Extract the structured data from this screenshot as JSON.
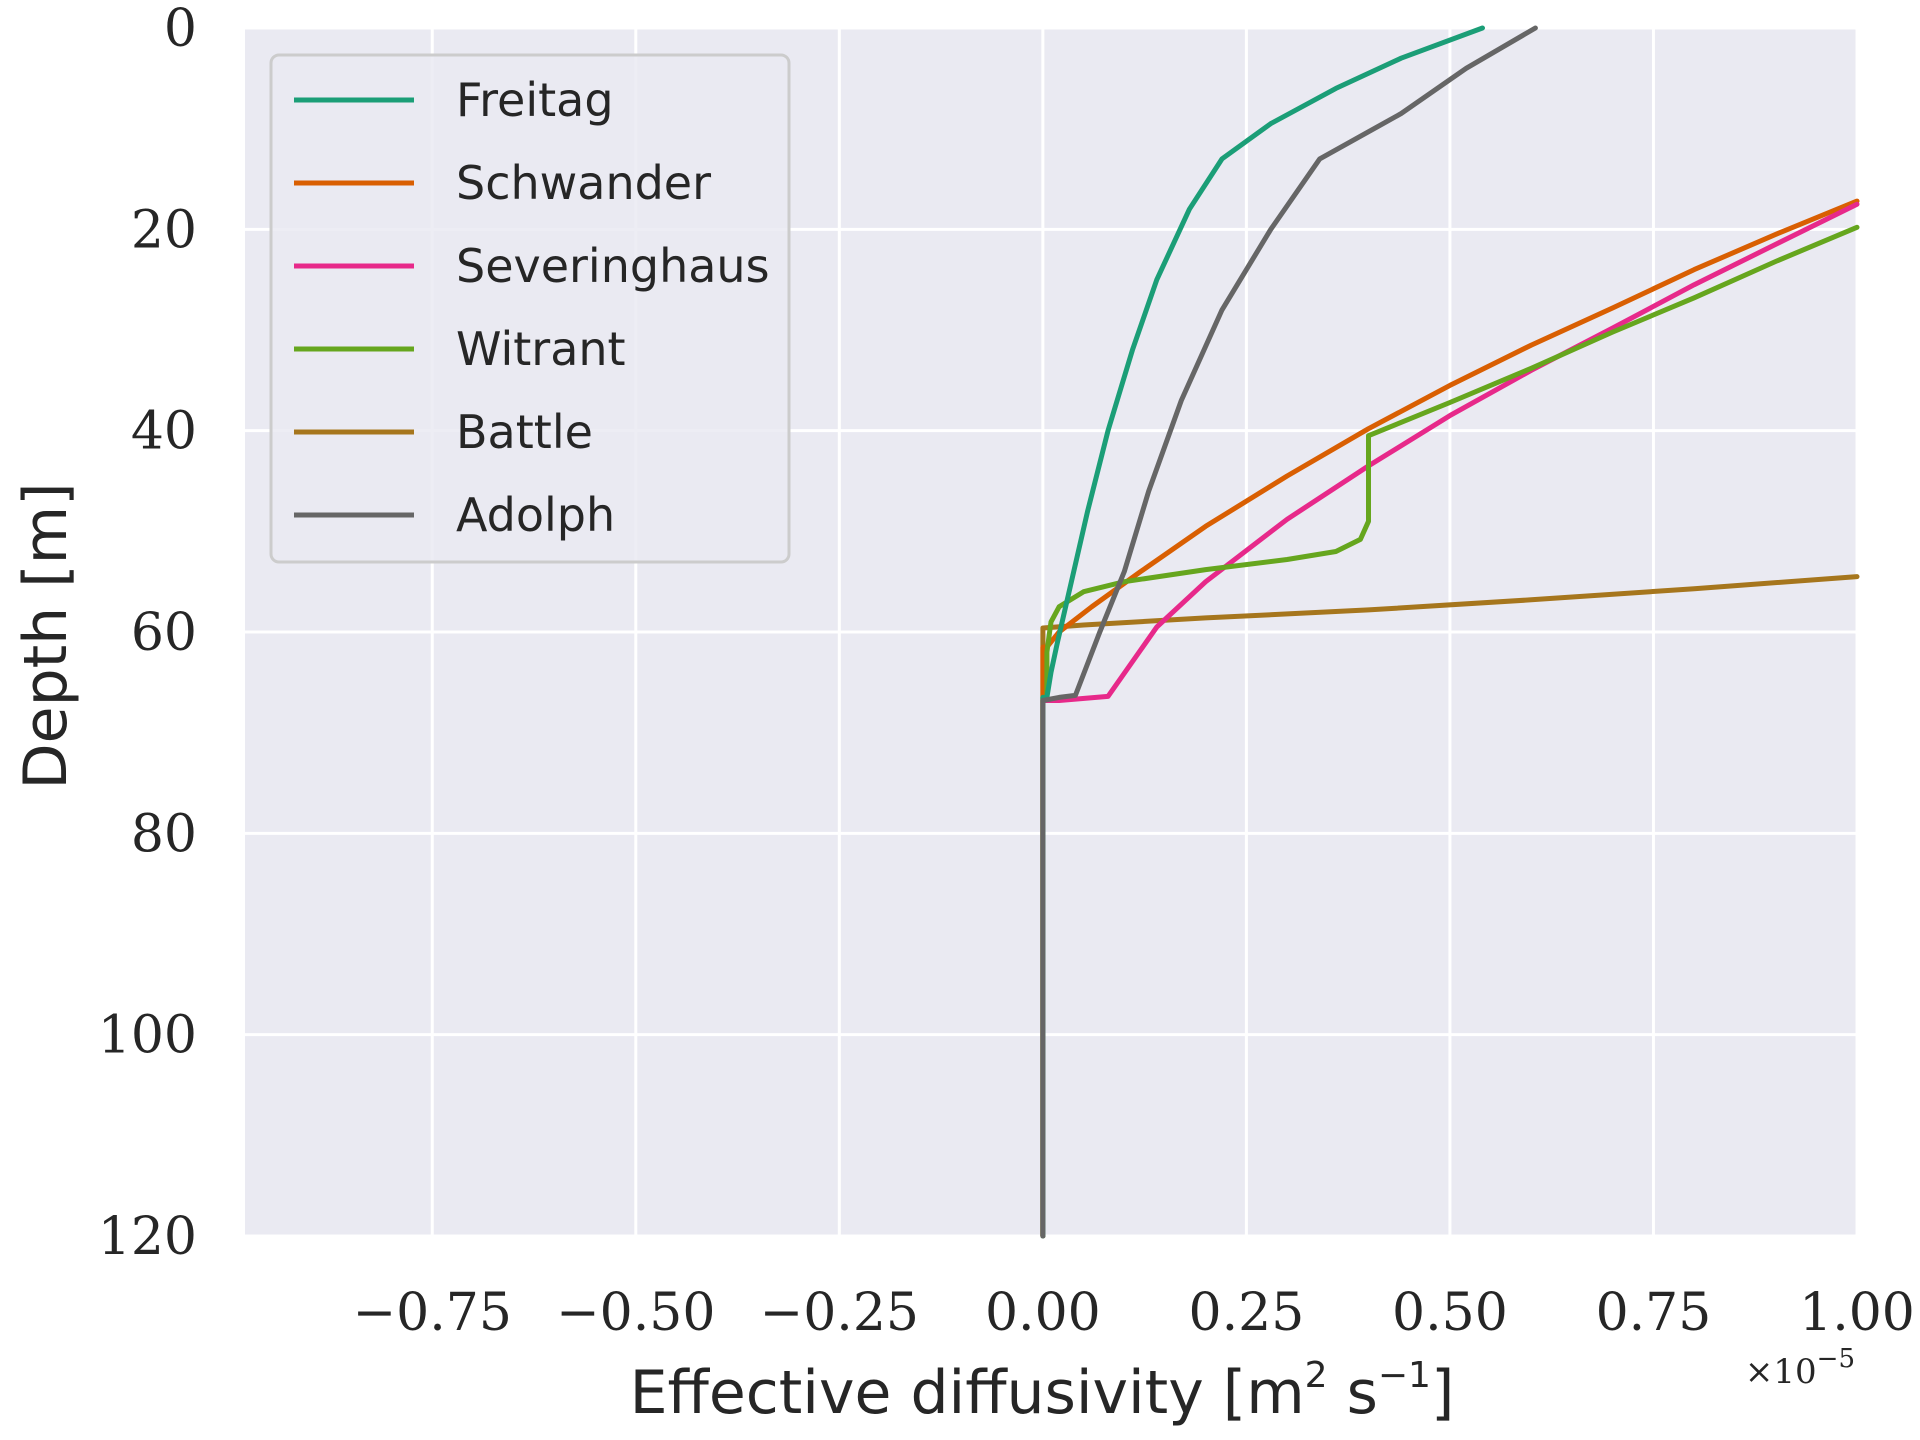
{
  "chart_data": {
    "type": "line",
    "xlabel_main": "Effective diffusivity [m",
    "xlabel_sup1": "2",
    "xlabel_mid": " s",
    "xlabel_sup2": "−1",
    "xlabel_end": "]",
    "ylabel": "Depth [m]",
    "x_offset_text": "×10",
    "x_offset_exp": "−5",
    "xlim": [
      -0.98,
      1.0
    ],
    "ylim": [
      120,
      0
    ],
    "y_inverted": true,
    "x_ticks": [
      -0.75,
      -0.5,
      -0.25,
      0.0,
      0.25,
      0.5,
      0.75,
      1.0
    ],
    "x_tick_labels": [
      "−0.75",
      "−0.50",
      "−0.25",
      "0.00",
      "0.25",
      "0.50",
      "0.75",
      "1.00"
    ],
    "y_ticks": [
      0,
      20,
      40,
      60,
      80,
      100,
      120
    ],
    "y_tick_labels": [
      "0",
      "20",
      "40",
      "60",
      "80",
      "100",
      "120"
    ],
    "grid": true,
    "background": "#EAEAF2",
    "legend_position": "top-left",
    "series": [
      {
        "name": "Freitag",
        "color": "#1B9E77",
        "points": [
          [
            0.54,
            0
          ],
          [
            0.44,
            3
          ],
          [
            0.36,
            6
          ],
          [
            0.28,
            9.5
          ],
          [
            0.22,
            13
          ],
          [
            0.18,
            18
          ],
          [
            0.14,
            25
          ],
          [
            0.11,
            32
          ],
          [
            0.08,
            40
          ],
          [
            0.055,
            48
          ],
          [
            0.035,
            55
          ],
          [
            0.018,
            61
          ],
          [
            0.01,
            64
          ],
          [
            0.005,
            66.5
          ],
          [
            0,
            66.5
          ],
          [
            0,
            120
          ]
        ]
      },
      {
        "name": "Schwander",
        "color": "#D95F02",
        "points": [
          [
            1.0,
            17.2
          ],
          [
            0.9,
            20.5
          ],
          [
            0.8,
            24
          ],
          [
            0.7,
            27.8
          ],
          [
            0.6,
            31.5
          ],
          [
            0.5,
            35.5
          ],
          [
            0.4,
            39.8
          ],
          [
            0.3,
            44.5
          ],
          [
            0.2,
            49.5
          ],
          [
            0.12,
            54
          ],
          [
            0.06,
            57.5
          ],
          [
            0.02,
            60
          ],
          [
            0.005,
            61.5
          ],
          [
            0,
            61.5
          ],
          [
            0,
            120
          ]
        ]
      },
      {
        "name": "Severinghaus",
        "color": "#E7298A",
        "points": [
          [
            1.0,
            17.5
          ],
          [
            0.9,
            21.5
          ],
          [
            0.8,
            25.5
          ],
          [
            0.7,
            29.8
          ],
          [
            0.6,
            34
          ],
          [
            0.5,
            38.5
          ],
          [
            0.4,
            43.5
          ],
          [
            0.3,
            48.8
          ],
          [
            0.2,
            55
          ],
          [
            0.14,
            59.5
          ],
          [
            0.08,
            66.4
          ],
          [
            0.02,
            66.8
          ],
          [
            0,
            66.8
          ],
          [
            0,
            120
          ]
        ]
      },
      {
        "name": "Witrant",
        "color": "#66A61E",
        "points": [
          [
            1.0,
            19.8
          ],
          [
            0.9,
            23.2
          ],
          [
            0.8,
            26.8
          ],
          [
            0.7,
            30.2
          ],
          [
            0.6,
            33.8
          ],
          [
            0.5,
            37.2
          ],
          [
            0.4,
            40.5
          ],
          [
            0.4,
            49
          ],
          [
            0.39,
            50.8
          ],
          [
            0.36,
            52
          ],
          [
            0.3,
            52.8
          ],
          [
            0.2,
            53.8
          ],
          [
            0.1,
            55
          ],
          [
            0.05,
            56
          ],
          [
            0.02,
            57.5
          ],
          [
            0.01,
            59
          ],
          [
            0.005,
            62
          ],
          [
            0.005,
            66.5
          ],
          [
            0,
            66.5
          ],
          [
            0,
            120
          ]
        ]
      },
      {
        "name": "Battle",
        "color": "#A6761D",
        "points": [
          [
            1.0,
            54.5
          ],
          [
            0.8,
            55.7
          ],
          [
            0.6,
            56.8
          ],
          [
            0.4,
            57.8
          ],
          [
            0.2,
            58.6
          ],
          [
            0.05,
            59.3
          ],
          [
            0,
            59.6
          ],
          [
            0,
            120
          ]
        ]
      },
      {
        "name": "Adolph",
        "color": "#666666",
        "points": [
          [
            0.605,
            0
          ],
          [
            0.52,
            4
          ],
          [
            0.44,
            8.5
          ],
          [
            0.34,
            13
          ],
          [
            0.28,
            20
          ],
          [
            0.22,
            28
          ],
          [
            0.17,
            37
          ],
          [
            0.13,
            46
          ],
          [
            0.1,
            54
          ],
          [
            0.07,
            60
          ],
          [
            0.04,
            66.3
          ],
          [
            0.02,
            66.5
          ],
          [
            0,
            66.8
          ],
          [
            0,
            120
          ]
        ]
      }
    ]
  }
}
